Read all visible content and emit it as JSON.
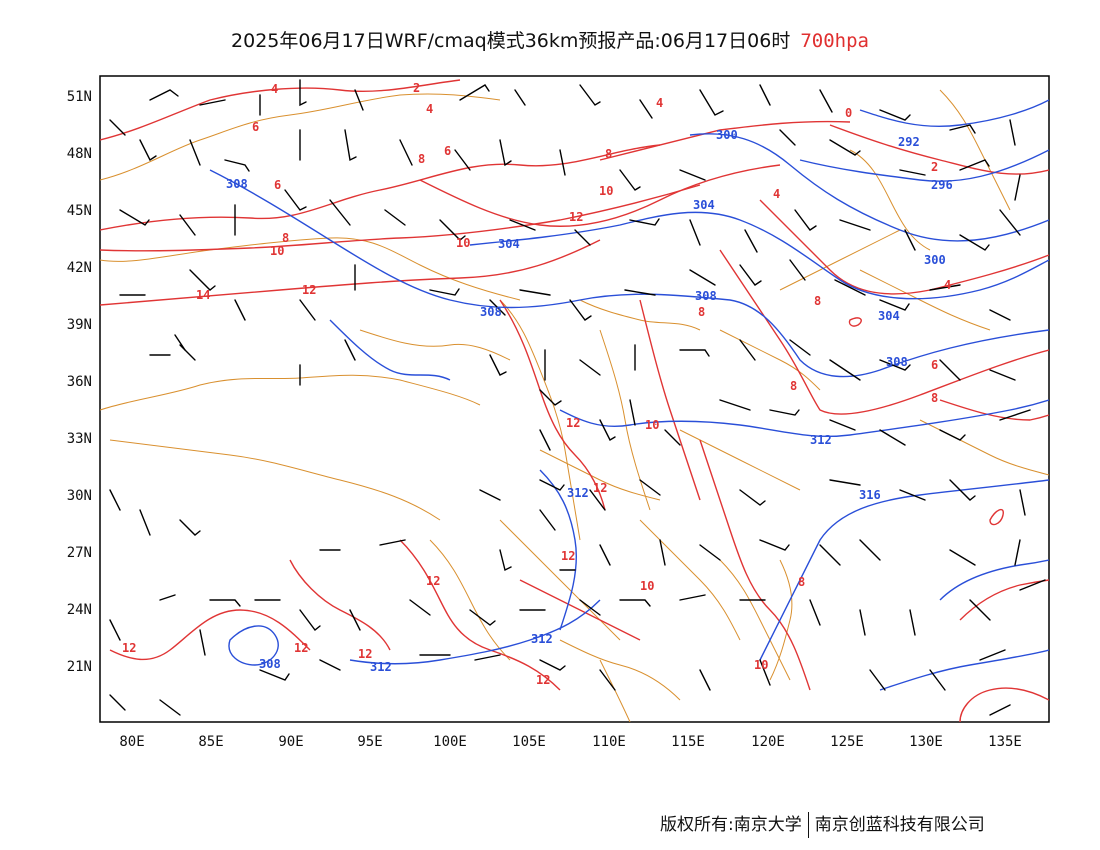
{
  "title": "2025年06月17日WRF/cmaq模式36km预报产品:06月17日06时",
  "level": "700hpa",
  "lat_labels": [
    "51N",
    "48N",
    "45N",
    "42N",
    "39N",
    "36N",
    "33N",
    "30N",
    "27N",
    "24N",
    "21N"
  ],
  "lon_labels": [
    "80E",
    "85E",
    "90E",
    "95E",
    "100E",
    "105E",
    "110E",
    "115E",
    "120E",
    "125E",
    "130E",
    "135E"
  ],
  "credit_left": "版权所有:南京大学",
  "credit_right": "南京创蓝科技有限公司",
  "height_contour_labels": [
    "292",
    "296",
    "300",
    "304",
    "308",
    "312",
    "316"
  ],
  "temperature_contour_labels": [
    "0",
    "2",
    "4",
    "6",
    "8",
    "10",
    "12",
    "14"
  ],
  "colors": {
    "height_contour": "#2a4fd8",
    "temperature_contour": "#e03535",
    "boundary": "#d9902f",
    "wind_barb": "#000000",
    "level_text": "#e03030"
  }
}
